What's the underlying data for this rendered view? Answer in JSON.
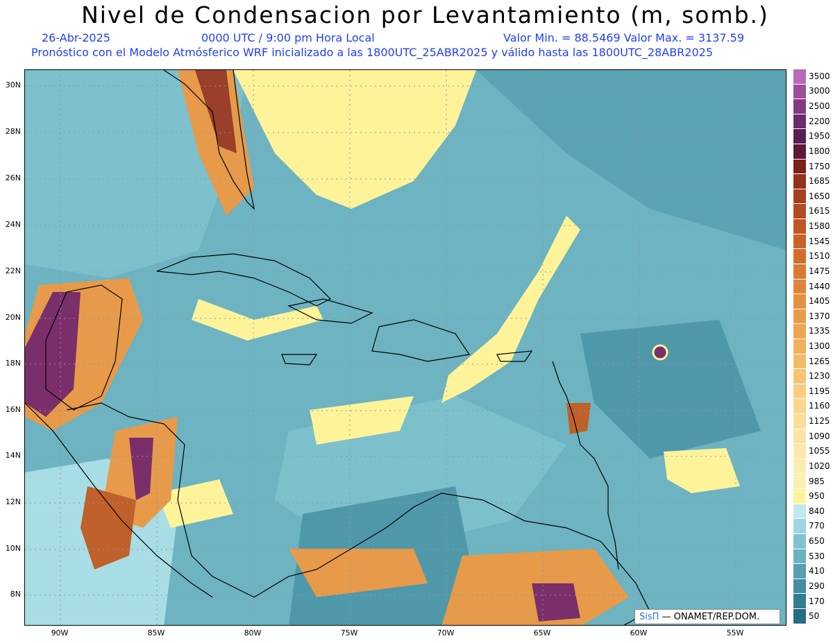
{
  "title": "Nivel de Condensacion por Levantamiento (m, somb.)",
  "subtitle": {
    "date": "26-Abr-2025",
    "time": "0000 UTC / 9:00 pm Hora Local",
    "minmax": "Valor Min. = 88.5469   Valor Max. = 3137.59",
    "model": "Pronóstico con el Modelo Atmósferico WRF inicializado a las 1800UTC_25ABR2025 y válido hasta las  1800UTC_28ABR2025"
  },
  "lat_labels": [
    "30N",
    "28N",
    "26N",
    "24N",
    "22N",
    "20N",
    "18N",
    "16N",
    "14N",
    "12N",
    "10N",
    "8N"
  ],
  "lon_labels": [
    "90W",
    "85W",
    "80W",
    "75W",
    "70W",
    "65W",
    "60W",
    "55W"
  ],
  "colorbar": {
    "labels": [
      "3500",
      "3000",
      "2500",
      "2200",
      "1950",
      "1800",
      "1750",
      "1685",
      "1650",
      "1615",
      "1580",
      "1545",
      "1510",
      "1475",
      "1440",
      "1405",
      "1370",
      "1335",
      "1300",
      "1265",
      "1230",
      "1195",
      "1160",
      "1125",
      "1090",
      "1055",
      "1020",
      "985",
      "950",
      "840",
      "770",
      "650",
      "530",
      "410",
      "290",
      "170",
      "50"
    ],
    "colors": [
      "#b86ab8",
      "#9b4f9b",
      "#833a83",
      "#6e2a6e",
      "#5a1f52",
      "#5c1a36",
      "#7a2418",
      "#94311a",
      "#a8401f",
      "#b44a22",
      "#c05624",
      "#c96228",
      "#d26e2d",
      "#d97a33",
      "#e08539",
      "#e59040",
      "#ea9b48",
      "#ee a552",
      "#f2af5c",
      "#f5ba67",
      "#f7c473",
      "#f9ce80",
      "#fbd68c",
      "#fcdd97",
      "#fde3a1",
      "#fee8a9",
      "#fdecae",
      "#fcefb2",
      "#fff39a",
      "#bfe9ef",
      "#9fd5de",
      "#82c2cf",
      "#6bb2c1",
      "#579fb1",
      "#428ea2",
      "#337d93",
      "#256c84"
    ]
  },
  "credit": {
    "sis": "SisΠ",
    "text": " — ONAMET/REP.DOM."
  },
  "colors": {
    "sea": "#66b0bf",
    "dry": "#fff39a",
    "high": "#c0602a",
    "max": "#7a2f6a"
  }
}
